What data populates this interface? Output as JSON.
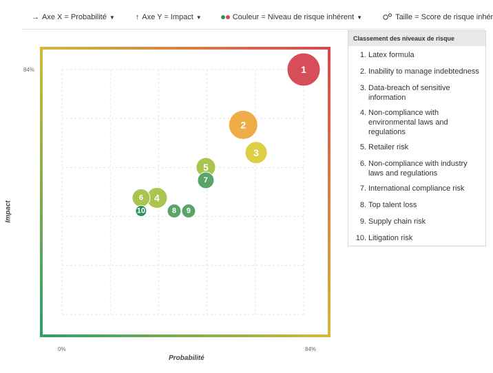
{
  "toolbar": {
    "x_axis": "Axe X = Probabilité",
    "y_axis": "Axe Y = Impact",
    "color": "Couleur = Niveau de risque inhérent",
    "size": "Taille = Score de risque inhérent"
  },
  "legend": {
    "title": "Classement des niveaux de risque",
    "items": [
      {
        "num": "1.",
        "label": "Latex formula"
      },
      {
        "num": "2.",
        "label": "Inability to manage indebtedness"
      },
      {
        "num": "3.",
        "label": "Data-breach of sensitive information"
      },
      {
        "num": "4.",
        "label": "Non-compliance with environmental laws and regulations"
      },
      {
        "num": "5.",
        "label": "Retailer risk"
      },
      {
        "num": "6.",
        "label": "Non-compliance with industry laws and regulations"
      },
      {
        "num": "7.",
        "label": "International compliance risk"
      },
      {
        "num": "8.",
        "label": "Top talent loss"
      },
      {
        "num": "9.",
        "label": "Supply chain risk"
      },
      {
        "num": "10.",
        "label": "Litigation risk"
      }
    ]
  },
  "chart_data": {
    "type": "scatter",
    "xlabel": "Probabilité",
    "ylabel": "Impact",
    "x_ticks": [
      "0%",
      "84%"
    ],
    "y_ticks": [
      "84%"
    ],
    "xlim": [
      0,
      84
    ],
    "ylim": [
      0,
      84
    ],
    "grid": true,
    "points": [
      {
        "label": "1",
        "x": 84,
        "y": 84,
        "size": 24,
        "color": "#d64e5a"
      },
      {
        "label": "2",
        "x": 63,
        "y": 65,
        "size": 21,
        "color": "#f0ac47"
      },
      {
        "label": "3",
        "x": 67.5,
        "y": 55.5,
        "size": 16,
        "color": "#dccf44"
      },
      {
        "label": "4",
        "x": 33,
        "y": 40,
        "size": 15,
        "color": "#a9c44f"
      },
      {
        "label": "5",
        "x": 50,
        "y": 50.5,
        "size": 14,
        "color": "#a9c44f"
      },
      {
        "label": "6",
        "x": 27.5,
        "y": 40,
        "size": 13,
        "color": "#a9c44f"
      },
      {
        "label": "7",
        "x": 50,
        "y": 46,
        "size": 12,
        "color": "#5aa46a"
      },
      {
        "label": "8",
        "x": 39,
        "y": 35.5,
        "size": 10,
        "color": "#5aa46a"
      },
      {
        "label": "9",
        "x": 44,
        "y": 35.5,
        "size": 10,
        "color": "#5aa46a"
      },
      {
        "label": "10",
        "x": 27.5,
        "y": 35.5,
        "size": 8,
        "color": "#2f8f5f"
      }
    ]
  }
}
